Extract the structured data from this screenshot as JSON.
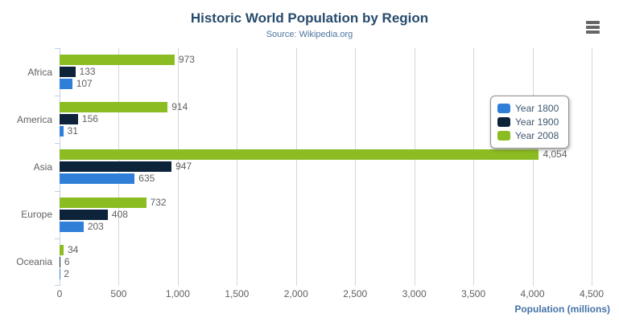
{
  "chart": {
    "title": "Historic World Population by Region",
    "subtitle": "Source: Wikipedia.org",
    "value_axis_title": "Population (millions)"
  },
  "icons": {
    "context_menu": "hamburger-icon"
  },
  "colors": {
    "title": "#274b6d",
    "subtitle": "#4d759e",
    "axis_title": "#4572a7",
    "axis_labels": "#606060",
    "data_labels": "#606060",
    "gridline": "#d6d6d6",
    "category_axis_line": "#c0d0e0",
    "legend_text": "#3e576f",
    "legend_border": "#909090",
    "hamburger_icon": "#666666",
    "background": "#ffffff"
  },
  "chart_data": {
    "type": "bar",
    "orientation": "horizontal",
    "title": "Historic World Population by Region",
    "subtitle": "Source: Wikipedia.org",
    "xlabel": "Population (millions)",
    "ylabel": "",
    "categories": [
      "Africa",
      "America",
      "Asia",
      "Europe",
      "Oceania"
    ],
    "series": [
      {
        "name": "Year 1800",
        "color": "#2f7ed8",
        "values": [
          107,
          31,
          635,
          203,
          2
        ]
      },
      {
        "name": "Year 1900",
        "color": "#0d233a",
        "values": [
          133,
          156,
          947,
          408,
          6
        ]
      },
      {
        "name": "Year 2008",
        "color": "#8bbc21",
        "values": [
          973,
          914,
          4054,
          732,
          34
        ]
      }
    ],
    "bar_order_top_to_bottom": [
      "Year 2008",
      "Year 1900",
      "Year 1800"
    ],
    "data_labels_shown": true,
    "xlim": [
      0,
      4500
    ],
    "ticks": [
      0,
      500,
      1000,
      1500,
      2000,
      2500,
      3000,
      3500,
      4000,
      4500
    ],
    "tick_labels": [
      "0",
      "500",
      "1,000",
      "1,500",
      "2,000",
      "2,500",
      "3,000",
      "3,500",
      "4,000",
      "4,500"
    ],
    "grid": "vertical",
    "legend_position": "right"
  }
}
